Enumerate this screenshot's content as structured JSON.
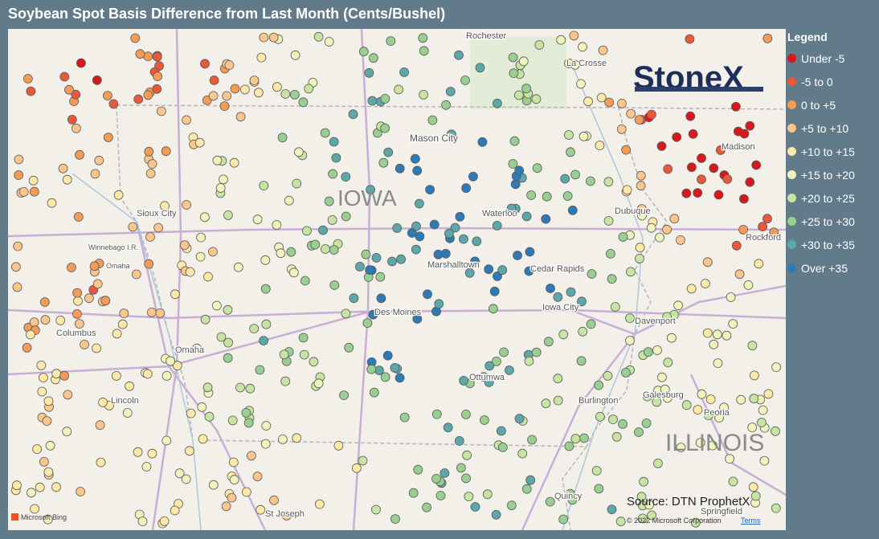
{
  "title": "Soybean Spot Basis Difference from Last Month (Cents/Bushel)",
  "legend": {
    "title": "Legend",
    "items": [
      {
        "label": "Under -5",
        "color": "#d7191c"
      },
      {
        "label": "-5 to 0",
        "color": "#e9583b"
      },
      {
        "label": "0 to +5",
        "color": "#f49b55"
      },
      {
        "label": "+5 to +10",
        "color": "#fbc68b"
      },
      {
        "label": "+10 to +15",
        "color": "#fde9a7"
      },
      {
        "label": "+15 to +20",
        "color": "#eef4bb"
      },
      {
        "label": "+20 to +25",
        "color": "#c7e4a1"
      },
      {
        "label": "+25 to +30",
        "color": "#99cf90"
      },
      {
        "label": "+30 to +35",
        "color": "#5ea7a9"
      },
      {
        "label": "Over +35",
        "color": "#2c7bb6"
      }
    ]
  },
  "map": {
    "labels": [
      "Rochester",
      "La Crosse",
      "Mason City",
      "IOWA",
      "Waterloo",
      "Dubuque",
      "Madison",
      "Sioux City",
      "Winnebago I.R.",
      "Omaha",
      "Marshalltown",
      "Cedar Rapids",
      "Rockford",
      "Des Moines",
      "Iowa City",
      "Davenport",
      "Columbus",
      "Omaha",
      "Ottumwa",
      "Lincoln",
      "Burlington",
      "Galesburg",
      "Peoria",
      "ILLINOIS",
      "Quincy",
      "St Joseph",
      "Springfield"
    ],
    "logo": "StoneX",
    "source": "Source: DTN ProphetX",
    "copyright": "© 2022 Microsoft Corporation",
    "terms": "Terms",
    "provider": "Microsoft Bing"
  }
}
